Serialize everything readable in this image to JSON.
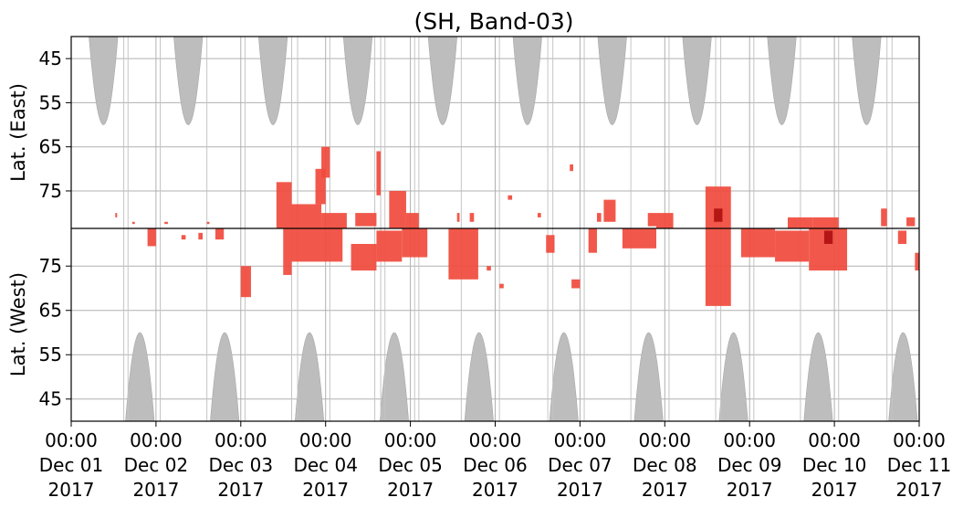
{
  "chart_data": {
    "type": "heatmap",
    "title": "(SH, Band-03)",
    "ylabel_top": "Lat. (East)",
    "ylabel_bottom": "Lat. (West)",
    "grid": true,
    "x_ticks": [
      {
        "time": "00:00",
        "date": "Dec 01",
        "year": "2017"
      },
      {
        "time": "00:00",
        "date": "Dec 02",
        "year": "2017"
      },
      {
        "time": "00:00",
        "date": "Dec 03",
        "year": "2017"
      },
      {
        "time": "00:00",
        "date": "Dec 04",
        "year": "2017"
      },
      {
        "time": "00:00",
        "date": "Dec 05",
        "year": "2017"
      },
      {
        "time": "00:00",
        "date": "Dec 06",
        "year": "2017"
      },
      {
        "time": "00:00",
        "date": "Dec 07",
        "year": "2017"
      },
      {
        "time": "00:00",
        "date": "Dec 08",
        "year": "2017"
      },
      {
        "time": "00:00",
        "date": "Dec 09",
        "year": "2017"
      },
      {
        "time": "00:00",
        "date": "Dec 10",
        "year": "2017"
      },
      {
        "time": "00:00",
        "date": "Dec 11",
        "year": "2017"
      }
    ],
    "xlim_days": [
      0,
      10
    ],
    "y_ticks_top": [
      "45",
      "55",
      "65",
      "75"
    ],
    "y_ticks_bottom": [
      "75",
      "65",
      "55",
      "45"
    ],
    "lat_range": [
      40,
      83.5
    ],
    "colors": {
      "gray": "#bdbdbd",
      "red": "#f04a3c",
      "darkred": "#b01010",
      "grid": "#b0b0b0"
    },
    "coverage_gaps": [
      {
        "hemisphere": "east",
        "center_day": 0.38,
        "half_width_days": 0.17,
        "min_lat": 60
      },
      {
        "hemisphere": "east",
        "center_day": 1.38,
        "half_width_days": 0.17,
        "min_lat": 60
      },
      {
        "hemisphere": "east",
        "center_day": 2.38,
        "half_width_days": 0.17,
        "min_lat": 60
      },
      {
        "hemisphere": "east",
        "center_day": 3.38,
        "half_width_days": 0.17,
        "min_lat": 60
      },
      {
        "hemisphere": "east",
        "center_day": 4.38,
        "half_width_days": 0.17,
        "min_lat": 60
      },
      {
        "hemisphere": "east",
        "center_day": 5.38,
        "half_width_days": 0.17,
        "min_lat": 60
      },
      {
        "hemisphere": "east",
        "center_day": 6.38,
        "half_width_days": 0.17,
        "min_lat": 60
      },
      {
        "hemisphere": "east",
        "center_day": 7.38,
        "half_width_days": 0.17,
        "min_lat": 60
      },
      {
        "hemisphere": "east",
        "center_day": 8.38,
        "half_width_days": 0.17,
        "min_lat": 60
      },
      {
        "hemisphere": "east",
        "center_day": 9.38,
        "half_width_days": 0.17,
        "min_lat": 60
      },
      {
        "hemisphere": "west",
        "center_day": 0.81,
        "half_width_days": 0.17,
        "min_lat": 60
      },
      {
        "hemisphere": "west",
        "center_day": 1.81,
        "half_width_days": 0.17,
        "min_lat": 60
      },
      {
        "hemisphere": "west",
        "center_day": 2.81,
        "half_width_days": 0.17,
        "min_lat": 60
      },
      {
        "hemisphere": "west",
        "center_day": 3.81,
        "half_width_days": 0.17,
        "min_lat": 60
      },
      {
        "hemisphere": "west",
        "center_day": 4.81,
        "half_width_days": 0.17,
        "min_lat": 60
      },
      {
        "hemisphere": "west",
        "center_day": 5.81,
        "half_width_days": 0.17,
        "min_lat": 60
      },
      {
        "hemisphere": "west",
        "center_day": 6.81,
        "half_width_days": 0.17,
        "min_lat": 60
      },
      {
        "hemisphere": "west",
        "center_day": 7.81,
        "half_width_days": 0.17,
        "min_lat": 60
      },
      {
        "hemisphere": "west",
        "center_day": 8.81,
        "half_width_days": 0.17,
        "min_lat": 60
      },
      {
        "hemisphere": "west",
        "center_day": 9.81,
        "half_width_days": 0.17,
        "min_lat": 60
      }
    ],
    "vertical_marks_days": [
      0.62,
      0.67,
      1.05,
      1.6,
      2.05,
      2.6,
      2.67,
      3.05,
      3.58,
      3.65,
      3.7,
      4.05,
      4.1,
      4.6,
      5.05,
      5.62,
      5.68,
      6.05,
      6.6,
      7.05,
      7.6,
      7.66,
      8.05,
      8.6,
      9.05,
      9.62,
      9.68
    ],
    "events": [
      {
        "hemisphere": "east",
        "day_start": 0.52,
        "day_end": 0.54,
        "lat_start": 80,
        "lat_end": 81
      },
      {
        "hemisphere": "east",
        "day_start": 0.72,
        "day_end": 0.75,
        "lat_start": 82,
        "lat_end": 82.5
      },
      {
        "hemisphere": "east",
        "day_start": 1.1,
        "day_end": 1.14,
        "lat_start": 82,
        "lat_end": 82.5
      },
      {
        "hemisphere": "east",
        "day_start": 1.6,
        "day_end": 1.63,
        "lat_start": 82,
        "lat_end": 82.5
      },
      {
        "hemisphere": "east",
        "day_start": 2.42,
        "day_end": 2.6,
        "lat_start": 73,
        "lat_end": 83.5
      },
      {
        "hemisphere": "east",
        "day_start": 2.6,
        "day_end": 2.95,
        "lat_start": 78,
        "lat_end": 83.5
      },
      {
        "hemisphere": "east",
        "day_start": 2.88,
        "day_end": 3.0,
        "lat_start": 70,
        "lat_end": 78
      },
      {
        "hemisphere": "east",
        "day_start": 2.95,
        "day_end": 3.05,
        "lat_start": 65,
        "lat_end": 72
      },
      {
        "hemisphere": "east",
        "day_start": 2.95,
        "day_end": 3.25,
        "lat_start": 80,
        "lat_end": 83.5
      },
      {
        "hemisphere": "east",
        "day_start": 3.35,
        "day_end": 3.6,
        "lat_start": 80,
        "lat_end": 83
      },
      {
        "hemisphere": "east",
        "day_start": 3.6,
        "day_end": 3.65,
        "lat_start": 66,
        "lat_end": 76
      },
      {
        "hemisphere": "east",
        "day_start": 3.75,
        "day_end": 3.95,
        "lat_start": 75,
        "lat_end": 83.5
      },
      {
        "hemisphere": "east",
        "day_start": 3.95,
        "day_end": 4.1,
        "lat_start": 80,
        "lat_end": 83.5
      },
      {
        "hemisphere": "east",
        "day_start": 4.55,
        "day_end": 4.58,
        "lat_start": 80,
        "lat_end": 82
      },
      {
        "hemisphere": "east",
        "day_start": 4.7,
        "day_end": 4.75,
        "lat_start": 80,
        "lat_end": 82
      },
      {
        "hemisphere": "east",
        "day_start": 5.15,
        "day_end": 5.2,
        "lat_start": 76,
        "lat_end": 77
      },
      {
        "hemisphere": "east",
        "day_start": 5.5,
        "day_end": 5.54,
        "lat_start": 80,
        "lat_end": 81
      },
      {
        "hemisphere": "east",
        "day_start": 5.88,
        "day_end": 5.92,
        "lat_start": 69,
        "lat_end": 70.5
      },
      {
        "hemisphere": "east",
        "day_start": 6.2,
        "day_end": 6.25,
        "lat_start": 80,
        "lat_end": 82
      },
      {
        "hemisphere": "east",
        "day_start": 6.28,
        "day_end": 6.42,
        "lat_start": 77,
        "lat_end": 82
      },
      {
        "hemisphere": "east",
        "day_start": 6.8,
        "day_end": 6.9,
        "lat_start": 80,
        "lat_end": 83
      },
      {
        "hemisphere": "east",
        "day_start": 6.9,
        "day_end": 7.1,
        "lat_start": 80,
        "lat_end": 83.5
      },
      {
        "hemisphere": "east",
        "day_start": 7.48,
        "day_end": 7.78,
        "lat_start": 74,
        "lat_end": 83.5
      },
      {
        "hemisphere": "east",
        "day_start": 8.45,
        "day_end": 8.75,
        "lat_start": 81,
        "lat_end": 83.5
      },
      {
        "hemisphere": "east",
        "day_start": 8.75,
        "day_end": 9.05,
        "lat_start": 81,
        "lat_end": 83.5
      },
      {
        "hemisphere": "east",
        "day_start": 9.55,
        "day_end": 9.62,
        "lat_start": 79,
        "lat_end": 83
      },
      {
        "hemisphere": "east",
        "day_start": 9.85,
        "day_end": 9.95,
        "lat_start": 81,
        "lat_end": 83
      },
      {
        "hemisphere": "west",
        "day_start": 0.9,
        "day_end": 1.0,
        "lat_start": 79.5,
        "lat_end": 83.5
      },
      {
        "hemisphere": "west",
        "day_start": 1.3,
        "day_end": 1.35,
        "lat_start": 81,
        "lat_end": 82
      },
      {
        "hemisphere": "west",
        "day_start": 1.5,
        "day_end": 1.55,
        "lat_start": 81,
        "lat_end": 82.5
      },
      {
        "hemisphere": "west",
        "day_start": 1.7,
        "day_end": 1.8,
        "lat_start": 81,
        "lat_end": 83.5
      },
      {
        "hemisphere": "west",
        "day_start": 2.0,
        "day_end": 2.12,
        "lat_start": 68,
        "lat_end": 75
      },
      {
        "hemisphere": "west",
        "day_start": 2.5,
        "day_end": 2.6,
        "lat_start": 73,
        "lat_end": 83.5
      },
      {
        "hemisphere": "west",
        "day_start": 2.6,
        "day_end": 3.2,
        "lat_start": 76,
        "lat_end": 83.5
      },
      {
        "hemisphere": "west",
        "day_start": 3.3,
        "day_end": 3.6,
        "lat_start": 74,
        "lat_end": 80
      },
      {
        "hemisphere": "west",
        "day_start": 3.6,
        "day_end": 3.9,
        "lat_start": 76,
        "lat_end": 83
      },
      {
        "hemisphere": "west",
        "day_start": 3.9,
        "day_end": 4.2,
        "lat_start": 77,
        "lat_end": 83.5
      },
      {
        "hemisphere": "west",
        "day_start": 4.45,
        "day_end": 4.8,
        "lat_start": 72,
        "lat_end": 83.5
      },
      {
        "hemisphere": "west",
        "day_start": 4.9,
        "day_end": 4.95,
        "lat_start": 74,
        "lat_end": 75
      },
      {
        "hemisphere": "west",
        "day_start": 5.05,
        "day_end": 5.1,
        "lat_start": 70,
        "lat_end": 71
      },
      {
        "hemisphere": "west",
        "day_start": 5.6,
        "day_end": 5.7,
        "lat_start": 78,
        "lat_end": 82
      },
      {
        "hemisphere": "west",
        "day_start": 5.9,
        "day_end": 6.0,
        "lat_start": 70,
        "lat_end": 72
      },
      {
        "hemisphere": "west",
        "day_start": 6.1,
        "day_end": 6.2,
        "lat_start": 78,
        "lat_end": 83.5
      },
      {
        "hemisphere": "west",
        "day_start": 6.5,
        "day_end": 6.9,
        "lat_start": 79,
        "lat_end": 83.5
      },
      {
        "hemisphere": "west",
        "day_start": 7.48,
        "day_end": 7.78,
        "lat_start": 66,
        "lat_end": 83.5
      },
      {
        "hemisphere": "west",
        "day_start": 7.9,
        "day_end": 8.3,
        "lat_start": 77,
        "lat_end": 83.5
      },
      {
        "hemisphere": "west",
        "day_start": 8.3,
        "day_end": 8.7,
        "lat_start": 76,
        "lat_end": 83
      },
      {
        "hemisphere": "west",
        "day_start": 8.7,
        "day_end": 9.15,
        "lat_start": 74,
        "lat_end": 83.5
      },
      {
        "hemisphere": "west",
        "day_start": 9.75,
        "day_end": 9.85,
        "lat_start": 80,
        "lat_end": 83
      },
      {
        "hemisphere": "west",
        "day_start": 9.95,
        "day_end": 10.0,
        "lat_start": 74,
        "lat_end": 78
      }
    ],
    "darkred_events": [
      {
        "hemisphere": "east",
        "day_start": 7.58,
        "day_end": 7.68,
        "lat_start": 79,
        "lat_end": 82
      },
      {
        "hemisphere": "west",
        "day_start": 8.88,
        "day_end": 8.98,
        "lat_start": 80,
        "lat_end": 83
      }
    ]
  }
}
